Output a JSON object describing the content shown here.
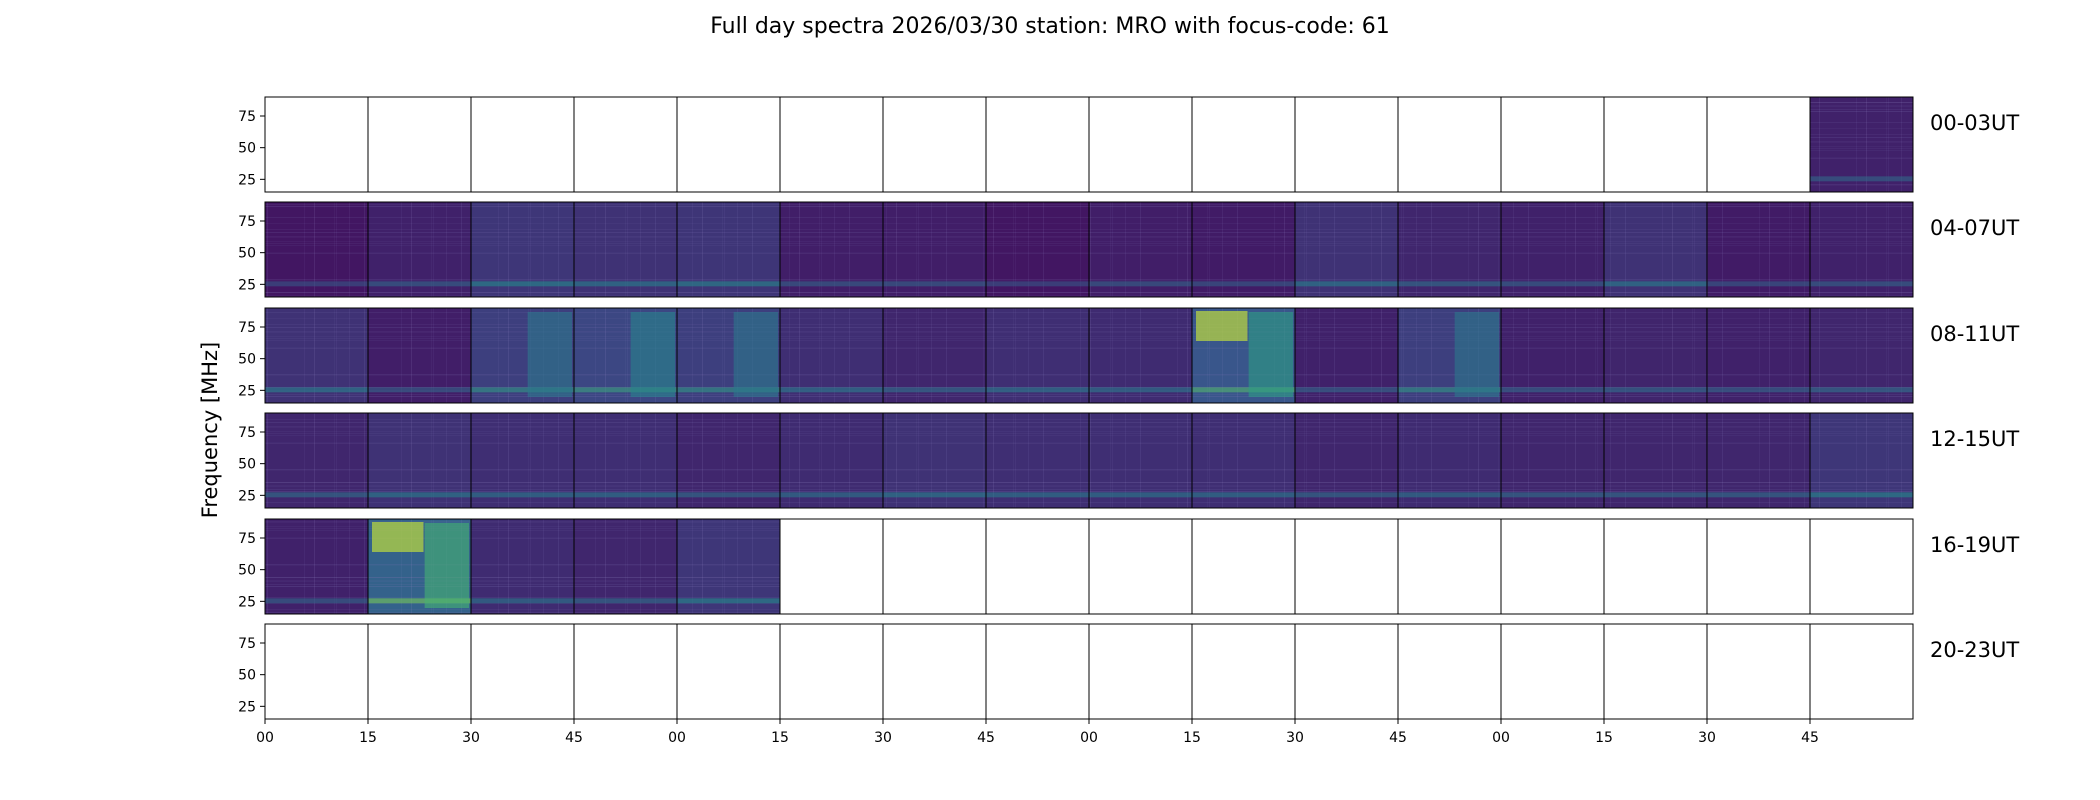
{
  "chart_data": {
    "type": "heatmap",
    "title": "Full day spectra 2026/03/30 station: MRO with focus-code: 61",
    "ylabel": "Frequency [MHz]",
    "yticks": [
      25,
      50,
      75
    ],
    "ylim": [
      15,
      90
    ],
    "xticks": [
      "00",
      "15",
      "30",
      "45",
      "00",
      "15",
      "30",
      "45",
      "00",
      "15",
      "30",
      "45",
      "00",
      "15",
      "30",
      "45"
    ],
    "xlim_minutes_per_panel": [
      0,
      15
    ],
    "panels_per_row": 16,
    "colormap": "viridis",
    "rows": [
      {
        "label": "00-03UT",
        "present": [
          0,
          0,
          0,
          0,
          0,
          0,
          0,
          0,
          0,
          0,
          0,
          0,
          0,
          0,
          0,
          1
        ],
        "level": [
          0,
          0,
          0,
          0,
          0,
          0,
          0,
          0,
          0,
          0,
          0,
          0,
          0,
          0,
          0,
          0.12
        ]
      },
      {
        "label": "04-07UT",
        "present": [
          1,
          1,
          1,
          1,
          1,
          1,
          1,
          1,
          1,
          1,
          1,
          1,
          1,
          1,
          1,
          1
        ],
        "level": [
          0.05,
          0.12,
          0.25,
          0.22,
          0.24,
          0.1,
          0.1,
          0.05,
          0.1,
          0.08,
          0.22,
          0.15,
          0.12,
          0.22,
          0.08,
          0.12
        ]
      },
      {
        "label": "08-11UT",
        "present": [
          1,
          1,
          1,
          1,
          1,
          1,
          1,
          1,
          1,
          1,
          1,
          1,
          1,
          1,
          1,
          1
        ],
        "level": [
          0.22,
          0.1,
          0.3,
          0.35,
          0.3,
          0.2,
          0.15,
          0.2,
          0.18,
          0.45,
          0.12,
          0.3,
          0.12,
          0.14,
          0.12,
          0.15
        ]
      },
      {
        "label": "12-15UT",
        "present": [
          1,
          1,
          1,
          1,
          1,
          1,
          1,
          1,
          1,
          1,
          1,
          1,
          1,
          1,
          1,
          1
        ],
        "level": [
          0.15,
          0.22,
          0.2,
          0.2,
          0.15,
          0.18,
          0.22,
          0.2,
          0.2,
          0.2,
          0.15,
          0.18,
          0.15,
          0.15,
          0.15,
          0.25
        ]
      },
      {
        "label": "16-19UT",
        "present": [
          1,
          1,
          1,
          1,
          1,
          0,
          0,
          0,
          0,
          0,
          0,
          0,
          0,
          0,
          0,
          0
        ],
        "level": [
          0.12,
          0.55,
          0.18,
          0.15,
          0.25,
          0,
          0,
          0,
          0,
          0,
          0,
          0,
          0,
          0,
          0,
          0
        ]
      },
      {
        "label": "20-23UT",
        "present": [
          0,
          0,
          0,
          0,
          0,
          0,
          0,
          0,
          0,
          0,
          0,
          0,
          0,
          0,
          0,
          0
        ],
        "level": [
          0,
          0,
          0,
          0,
          0,
          0,
          0,
          0,
          0,
          0,
          0,
          0,
          0,
          0,
          0,
          0
        ]
      }
    ]
  },
  "colors": {
    "low": "#440154",
    "mid": "#3b528b",
    "teal": "#21918c",
    "green": "#5ec962",
    "high": "#fde725",
    "frame": "#000000"
  }
}
